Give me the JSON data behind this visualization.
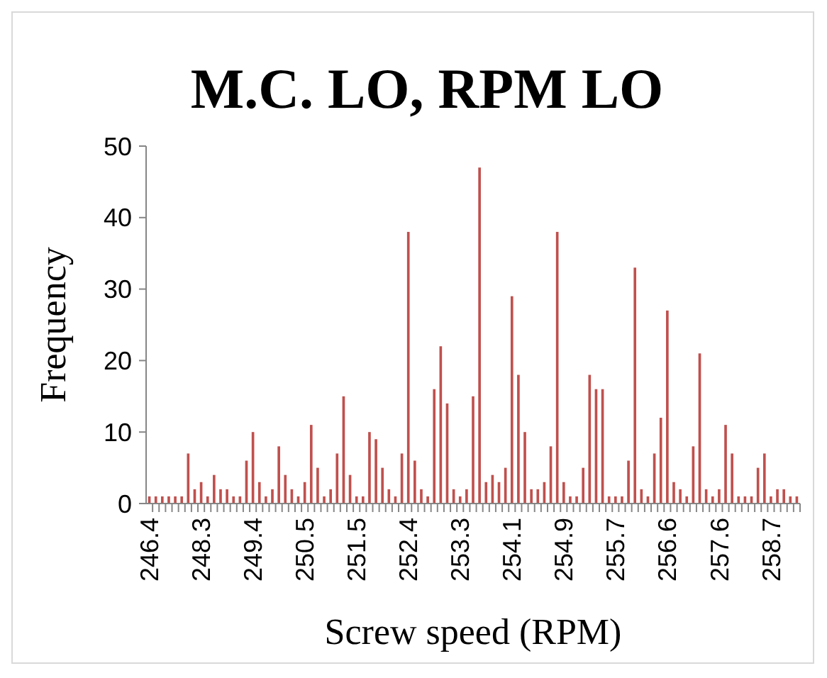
{
  "chart_data": {
    "type": "bar",
    "title": "M.C. LO, RPM LO",
    "xlabel": "Screw speed (RPM)",
    "ylabel": "Frequency",
    "categories": [
      "246.4",
      null,
      null,
      null,
      null,
      null,
      null,
      null,
      "248.3",
      null,
      null,
      null,
      null,
      null,
      null,
      null,
      "249.4",
      null,
      null,
      null,
      null,
      null,
      null,
      null,
      "250.5",
      null,
      null,
      null,
      null,
      null,
      null,
      null,
      "251.5",
      null,
      null,
      null,
      null,
      null,
      null,
      null,
      "252.4",
      null,
      null,
      null,
      null,
      null,
      null,
      null,
      "253.3",
      null,
      null,
      null,
      null,
      null,
      null,
      null,
      "254.1",
      null,
      null,
      null,
      null,
      null,
      null,
      null,
      "254.9",
      null,
      null,
      null,
      null,
      null,
      null,
      null,
      "255.7",
      null,
      null,
      null,
      null,
      null,
      null,
      null,
      "256.6",
      null,
      null,
      null,
      null,
      null,
      null,
      null,
      "257.6",
      null,
      null,
      null,
      null,
      null,
      null,
      null,
      "258.7",
      null,
      null,
      null,
      null
    ],
    "values": [
      1,
      1,
      1,
      1,
      1,
      1,
      7,
      2,
      3,
      1,
      4,
      2,
      2,
      1,
      1,
      6,
      10,
      3,
      1,
      2,
      8,
      4,
      2,
      1,
      3,
      11,
      5,
      1,
      2,
      7,
      15,
      4,
      1,
      1,
      10,
      9,
      5,
      2,
      1,
      7,
      38,
      6,
      2,
      1,
      16,
      22,
      14,
      2,
      1,
      2,
      15,
      47,
      3,
      4,
      3,
      5,
      29,
      18,
      10,
      2,
      2,
      3,
      8,
      38,
      3,
      1,
      1,
      5,
      18,
      16,
      16,
      1,
      1,
      1,
      6,
      33,
      2,
      1,
      7,
      12,
      27,
      3,
      2,
      1,
      8,
      21,
      2,
      1,
      2,
      11,
      7,
      1,
      1,
      1,
      5,
      7,
      1,
      2,
      2,
      1,
      1
    ],
    "color": "#c0504d",
    "ylim": [
      0,
      50
    ],
    "yticks": [
      0,
      10,
      20,
      30,
      40,
      50
    ],
    "grid": false
  }
}
